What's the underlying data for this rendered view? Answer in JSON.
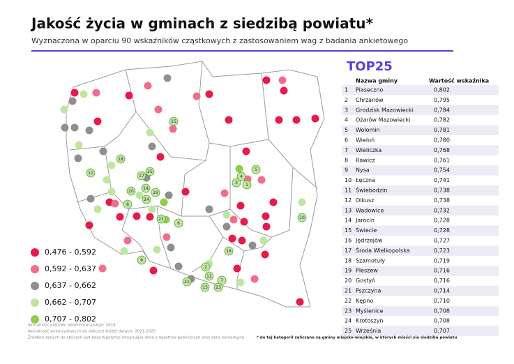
{
  "header": {
    "title": "Jakość życia w gminach z siedzibą powiatu*",
    "subtitle": "Wyznaczona w oparciu 90 wskaźników cząstkowych z zastosowaniem wag z badania ankietowego"
  },
  "legend": [
    {
      "label": "0,476 - 0,592",
      "color": "#e8194b"
    },
    {
      "label": "0,592 - 0,637",
      "color": "#f06e8c"
    },
    {
      "label": "0,637 - 0,662",
      "color": "#8f8f8f"
    },
    {
      "label": "0,662 - 0,707",
      "color": "#bfe6a0"
    },
    {
      "label": "0,707 - 0,802",
      "color": "#8ccf4d"
    }
  ],
  "map": {
    "labels": [
      "1",
      "2",
      "3",
      "4",
      "5",
      "6",
      "7",
      "8",
      "9",
      "10",
      "11",
      "12",
      "13",
      "14",
      "15",
      "16",
      "17",
      "18",
      "19",
      "20",
      "21",
      "22",
      "23",
      "24",
      "25"
    ]
  },
  "table": {
    "title": "TOP25",
    "columns": [
      "Nazwa gminy",
      "Wartość wskaźnika"
    ],
    "rows": [
      [
        "1",
        "Piaseczno",
        "0,802"
      ],
      [
        "2",
        "Chrzanów",
        "0,795"
      ],
      [
        "3",
        "Grodzisk Mazowiecki",
        "0,784"
      ],
      [
        "4",
        "Ożarów Mazowiecki",
        "0,782"
      ],
      [
        "5",
        "Wołomin",
        "0,781"
      ],
      [
        "6",
        "Wieluń",
        "0,780"
      ],
      [
        "7",
        "Wieliczka",
        "0,768"
      ],
      [
        "8",
        "Rawicz",
        "0,761"
      ],
      [
        "9",
        "Nysa",
        "0,754"
      ],
      [
        "10",
        "Łęczna",
        "0,741"
      ],
      [
        "11",
        "Świebodzin",
        "0,738"
      ],
      [
        "12",
        "Olkusz",
        "0,738"
      ],
      [
        "13",
        "Wadowice",
        "0,732"
      ],
      [
        "14",
        "Jarocin",
        "0,728"
      ],
      [
        "15",
        "Świecie",
        "0,728"
      ],
      [
        "16",
        "Jędrzejów",
        "0,727"
      ],
      [
        "17",
        "Środa Wielkopolska",
        "0,723"
      ],
      [
        "18",
        "Szamotuły",
        "0,719"
      ],
      [
        "19",
        "Pleszew",
        "0,716"
      ],
      [
        "20",
        "Gostyń",
        "0,716"
      ],
      [
        "21",
        "Pszczyna",
        "0,714"
      ],
      [
        "22",
        "Kępno",
        "0,710"
      ],
      [
        "23",
        "Myślenice",
        "0,708"
      ],
      [
        "24",
        "Krotoszyn",
        "0,708"
      ],
      [
        "25",
        "Września",
        "0,707"
      ]
    ]
  },
  "footer": {
    "notes": [
      "Aktualność podziału administracyjnego: 2024",
      "Aktualność wykorzystanych do obliczeń źródeł danych: 2021-2025",
      "Źródłem danych do obliczeń jest baza Algolytics integrująca dane z rejestrów publicznych oraz dane komercyjne"
    ],
    "footnote": "* do tej kategorii zaliczane są gminy miejsko-wiejskie, w których mieści się siedziba powiatu"
  }
}
